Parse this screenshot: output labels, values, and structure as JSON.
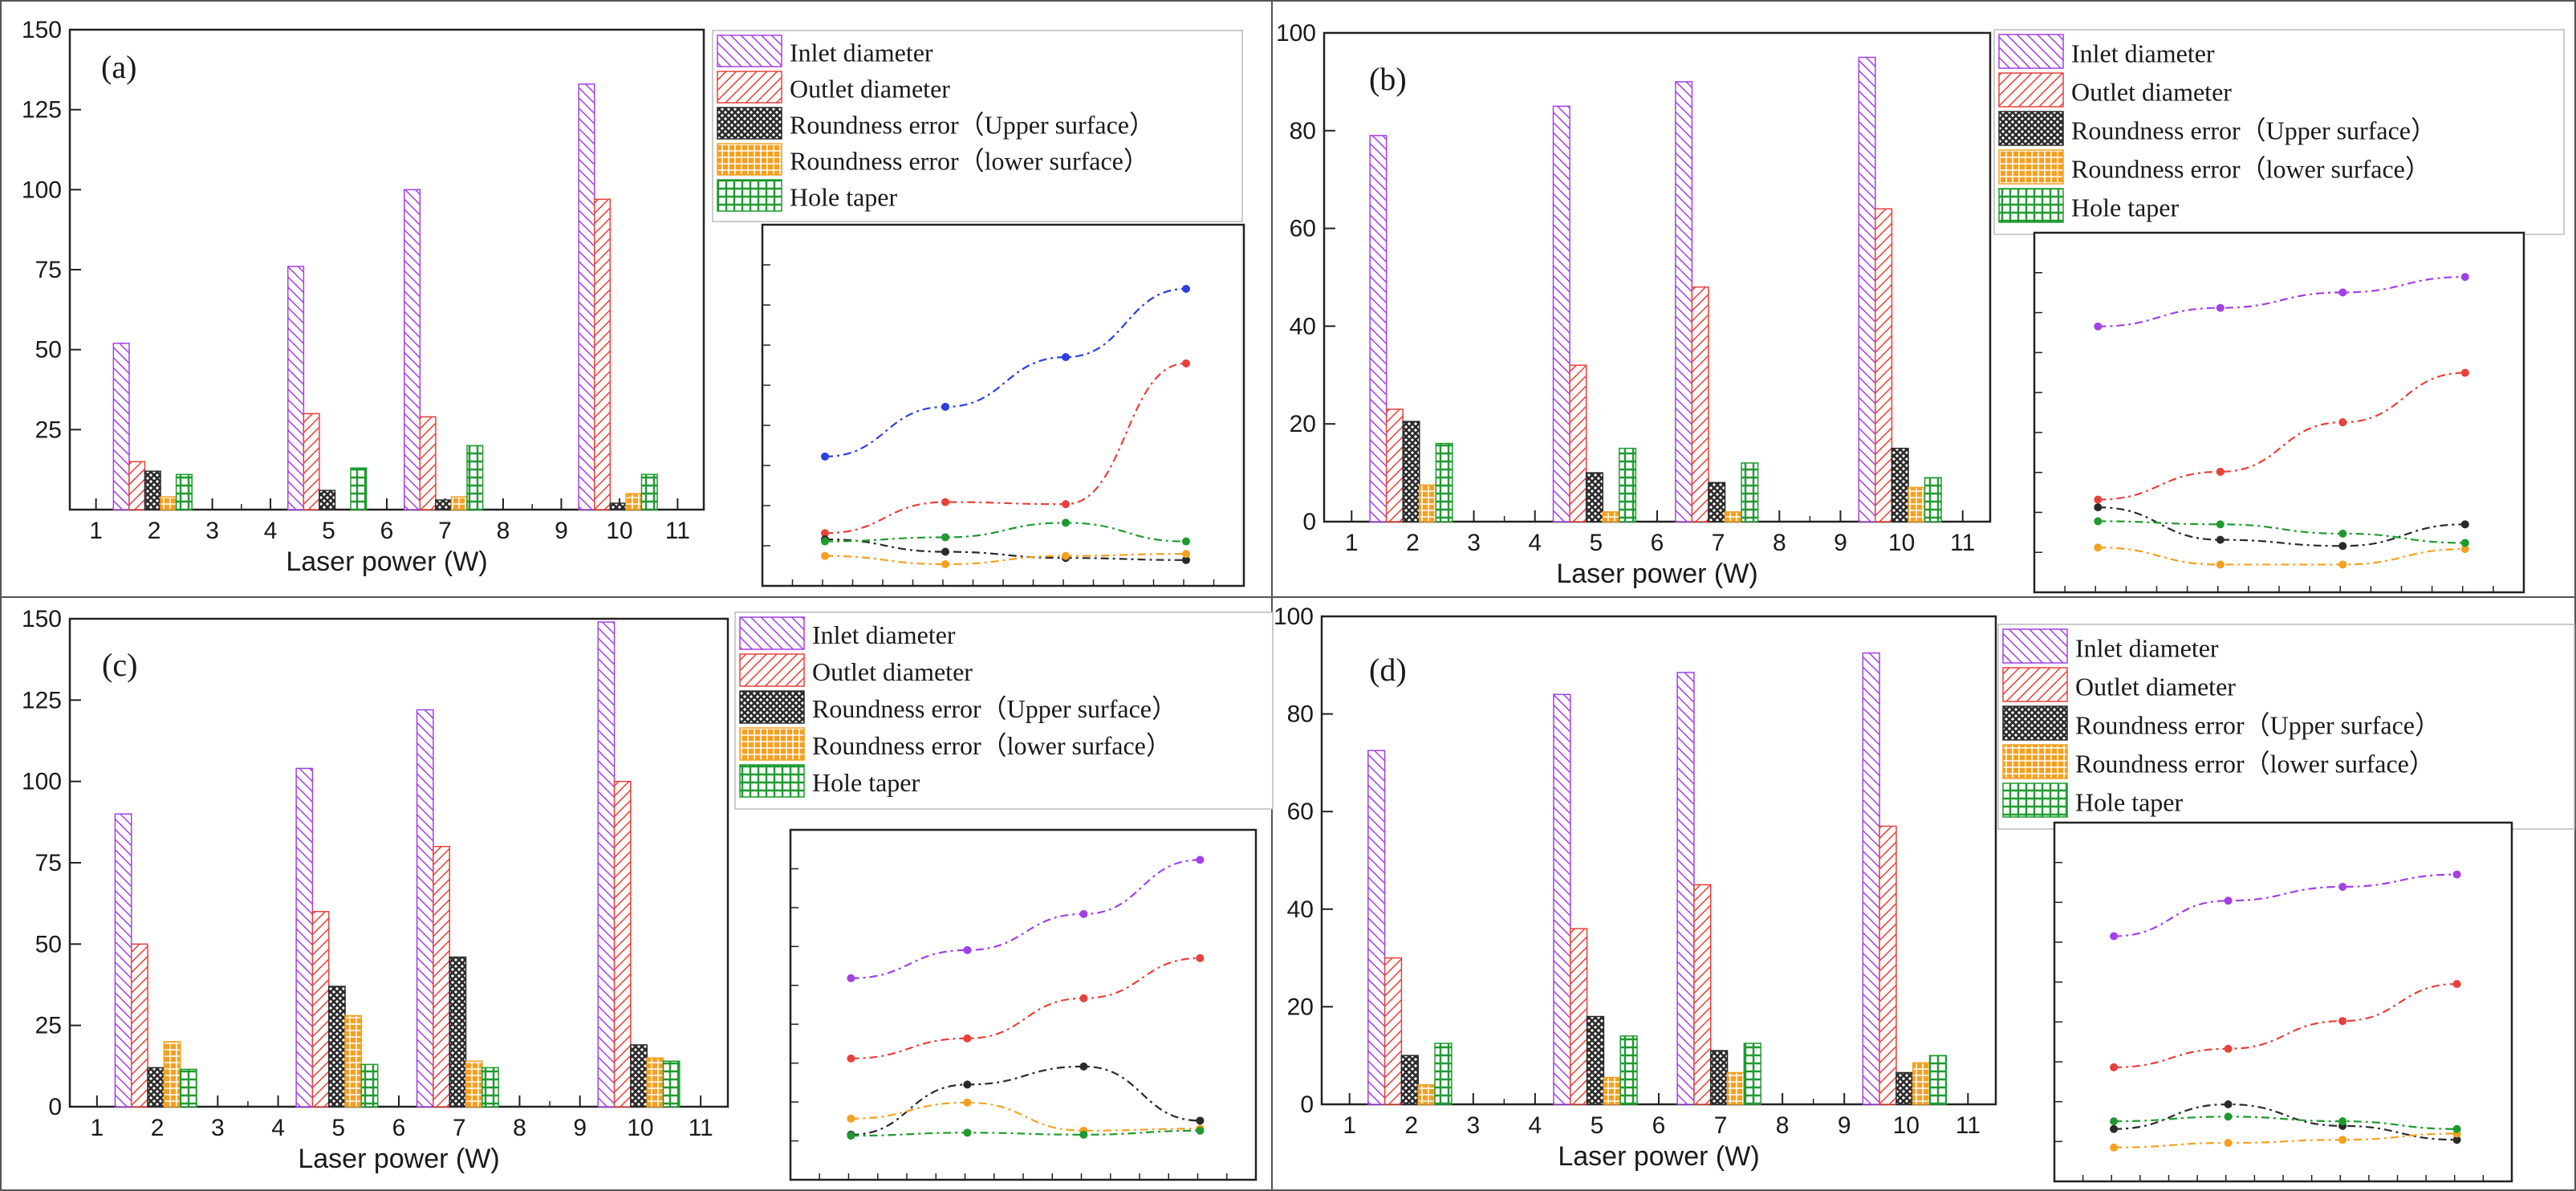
{
  "chart_data": [
    {
      "type": "bar",
      "panel_label": "(a)",
      "xlabel": "Laser power (W)",
      "ylabel": "",
      "ylim": [
        0,
        150
      ],
      "y_ticks": [
        "25",
        "50",
        "75",
        "100",
        "125",
        "150"
      ],
      "x_ticks": [
        "1",
        "2",
        "3",
        "4",
        "5",
        "6",
        "7",
        "8",
        "9",
        "10",
        "11"
      ],
      "categories": [
        "2",
        "5",
        "7",
        "10"
      ],
      "series": [
        {
          "name": "Inlet diameter",
          "values": [
            52,
            76,
            100,
            133
          ]
        },
        {
          "name": "Outlet diameter",
          "values": [
            15,
            30,
            29,
            97
          ]
        },
        {
          "name": "Roundness error（Upper surface）",
          "values": [
            12,
            6,
            3,
            2
          ]
        },
        {
          "name": "Roundness error（lower surface）",
          "values": [
            4,
            0,
            4,
            5
          ]
        },
        {
          "name": "Hole taper",
          "values": [
            11,
            13,
            20,
            11
          ]
        }
      ],
      "inset_lines": [
        {
          "name": "Inlet diameter",
          "values": [
            52,
            76,
            100,
            133
          ]
        },
        {
          "name": "Outlet diameter",
          "values": [
            15,
            30,
            29,
            97
          ]
        },
        {
          "name": "Roundness error（Upper surface）",
          "values": [
            12,
            6,
            3,
            2
          ]
        },
        {
          "name": "Roundness error（lower surface）",
          "values": [
            4,
            0,
            4,
            5
          ]
        },
        {
          "name": "Hole taper",
          "values": [
            11,
            13,
            20,
            11
          ]
        }
      ]
    },
    {
      "type": "bar",
      "panel_label": "(b)",
      "xlabel": "Laser power (W)",
      "ylabel": "",
      "ylim": [
        0,
        100
      ],
      "y_ticks": [
        "0",
        "20",
        "40",
        "60",
        "80",
        "100"
      ],
      "x_ticks": [
        "1",
        "2",
        "3",
        "4",
        "5",
        "6",
        "7",
        "8",
        "9",
        "10",
        "11"
      ],
      "categories": [
        "2",
        "5",
        "7",
        "10"
      ],
      "series": [
        {
          "name": "Inlet diameter",
          "values": [
            79,
            85,
            90,
            95
          ]
        },
        {
          "name": "Outlet diameter",
          "values": [
            23,
            32,
            48,
            64
          ]
        },
        {
          "name": "Roundness error（Upper surface）",
          "values": [
            20.5,
            10,
            8,
            15
          ]
        },
        {
          "name": "Roundness error（lower surface）",
          "values": [
            7.5,
            2,
            2,
            7
          ]
        },
        {
          "name": "Hole taper",
          "values": [
            16,
            15,
            12,
            9
          ]
        }
      ],
      "inset_lines": [
        {
          "name": "Inlet diameter",
          "values": [
            79,
            85,
            90,
            95
          ]
        },
        {
          "name": "Outlet diameter",
          "values": [
            23,
            32,
            48,
            64
          ]
        },
        {
          "name": "Roundness error（Upper surface）",
          "values": [
            20.5,
            10,
            8,
            15
          ]
        },
        {
          "name": "Roundness error（lower surface）",
          "values": [
            7.5,
            2,
            2,
            7
          ]
        },
        {
          "name": "Hole taper",
          "values": [
            16,
            15,
            12,
            9
          ]
        }
      ]
    },
    {
      "type": "bar",
      "panel_label": "(c)",
      "xlabel": "Laser power (W)",
      "ylabel": "",
      "ylim": [
        0,
        150
      ],
      "y_ticks": [
        "0",
        "25",
        "50",
        "75",
        "100",
        "125",
        "150"
      ],
      "x_ticks": [
        "1",
        "2",
        "3",
        "4",
        "5",
        "6",
        "7",
        "8",
        "9",
        "10",
        "11"
      ],
      "categories": [
        "2",
        "5",
        "7",
        "10"
      ],
      "series": [
        {
          "name": "Inlet diameter",
          "values": [
            90,
            104,
            122,
            149
          ]
        },
        {
          "name": "Outlet diameter",
          "values": [
            50,
            60,
            80,
            100
          ]
        },
        {
          "name": "Roundness error（Upper surface）",
          "values": [
            12,
            37,
            46,
            19
          ]
        },
        {
          "name": "Roundness error（lower surface）",
          "values": [
            20,
            28,
            14,
            15
          ]
        },
        {
          "name": "Hole taper",
          "values": [
            11.5,
            13,
            12,
            14
          ]
        }
      ],
      "inset_lines": [
        {
          "name": "Inlet diameter",
          "values": [
            90,
            104,
            122,
            149
          ]
        },
        {
          "name": "Outlet diameter",
          "values": [
            50,
            60,
            80,
            100
          ]
        },
        {
          "name": "Roundness error（Upper surface）",
          "values": [
            12,
            37,
            46,
            19
          ]
        },
        {
          "name": "Roundness error（lower surface）",
          "values": [
            20,
            28,
            14,
            15
          ]
        },
        {
          "name": "Hole taper",
          "values": [
            11.5,
            13,
            12,
            14
          ]
        }
      ]
    },
    {
      "type": "bar",
      "panel_label": "(d)",
      "xlabel": "Laser power (W)",
      "ylabel": "",
      "ylim": [
        0,
        100
      ],
      "y_ticks": [
        "0",
        "20",
        "40",
        "60",
        "80",
        "100"
      ],
      "x_ticks": [
        "1",
        "2",
        "3",
        "4",
        "5",
        "6",
        "7",
        "8",
        "9",
        "10",
        "11"
      ],
      "categories": [
        "2",
        "5",
        "7",
        "10"
      ],
      "series": [
        {
          "name": "Inlet diameter",
          "values": [
            72.5,
            84,
            88.5,
            92.5
          ]
        },
        {
          "name": "Outlet diameter",
          "values": [
            30,
            36,
            45,
            57
          ]
        },
        {
          "name": "Roundness error（Upper surface）",
          "values": [
            10,
            18,
            11,
            6.5
          ]
        },
        {
          "name": "Roundness error（lower surface）",
          "values": [
            4,
            5.5,
            6.5,
            8.5
          ]
        },
        {
          "name": "Hole taper",
          "values": [
            12.5,
            14,
            12.5,
            10
          ]
        }
      ],
      "inset_lines": [
        {
          "name": "Inlet diameter",
          "values": [
            72.5,
            84,
            88.5,
            92.5
          ]
        },
        {
          "name": "Outlet diameter",
          "values": [
            30,
            36,
            45,
            57
          ]
        },
        {
          "name": "Roundness error（Upper surface）",
          "values": [
            10,
            18,
            11,
            6.5
          ]
        },
        {
          "name": "Roundness error（lower surface）",
          "values": [
            4,
            5.5,
            6.5,
            8.5
          ]
        },
        {
          "name": "Hole taper",
          "values": [
            12.5,
            14,
            12.5,
            10
          ]
        }
      ]
    }
  ],
  "colors": {
    "inlet": "#a340e6",
    "outlet": "#e8403a",
    "upper": "#2a2a2a",
    "lower": "#f5a020",
    "taper": "#1e9a30",
    "inlet_line_a": "#2c3fe0"
  }
}
